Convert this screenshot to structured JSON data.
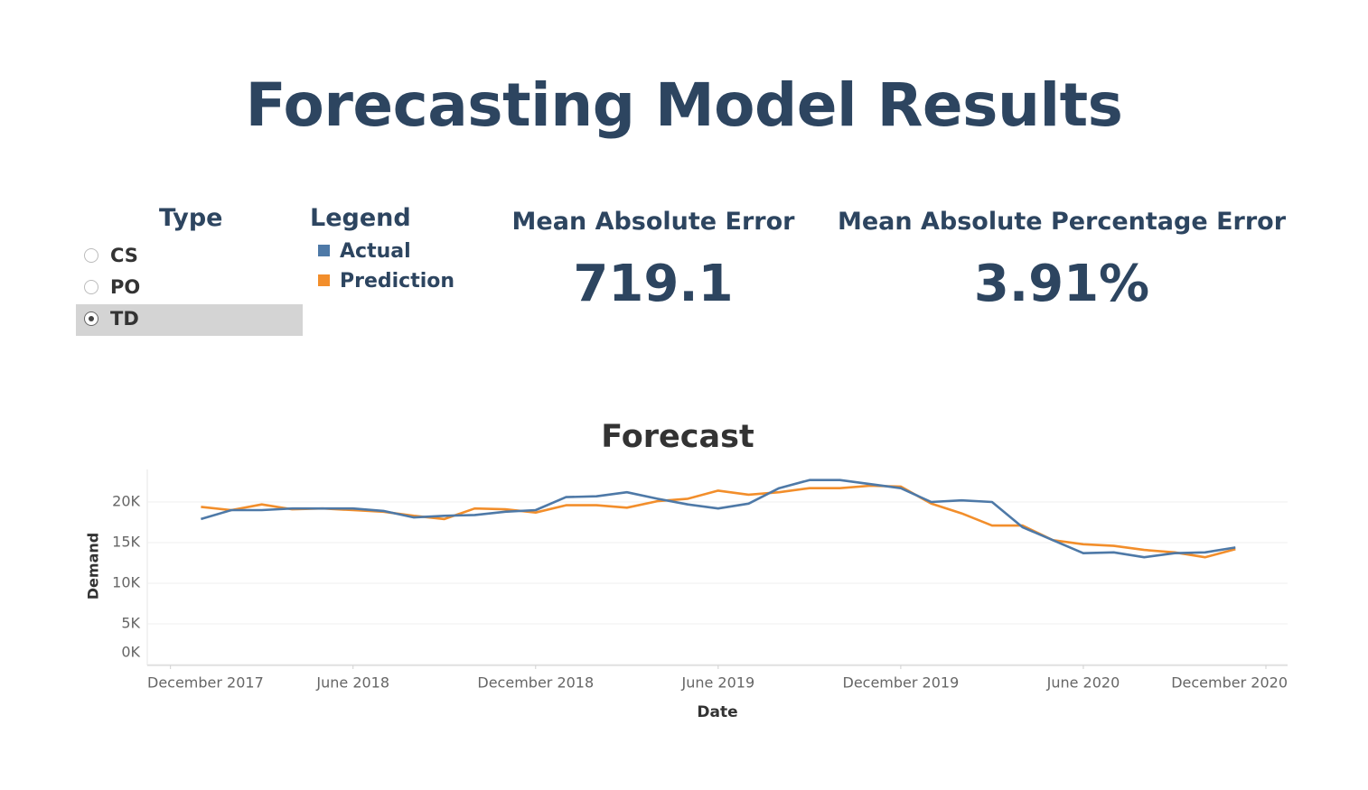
{
  "header": {
    "title": "Forecasting Model Results"
  },
  "filter": {
    "title": "Type",
    "options": [
      "CS",
      "PO",
      "TD"
    ],
    "selected": "TD"
  },
  "legend": {
    "title": "Legend"
  },
  "kpis": [
    {
      "label": "Mean Absolute Error",
      "value": "719.1"
    },
    {
      "label": "Mean Absolute Percentage Error",
      "value": "3.91%"
    }
  ],
  "chart_data": {
    "type": "line",
    "title": "Forecast",
    "x_label": "Date",
    "y_label": "Demand",
    "x": [
      "2018-01",
      "2018-02",
      "2018-03",
      "2018-04",
      "2018-05",
      "2018-06",
      "2018-07",
      "2018-08",
      "2018-09",
      "2018-10",
      "2018-11",
      "2018-12",
      "2019-01",
      "2019-02",
      "2019-03",
      "2019-04",
      "2019-05",
      "2019-06",
      "2019-07",
      "2019-08",
      "2019-09",
      "2019-10",
      "2019-11",
      "2019-12",
      "2020-01",
      "2020-02",
      "2020-03",
      "2020-04",
      "2020-05",
      "2020-06",
      "2020-07",
      "2020-08",
      "2020-09",
      "2020-10",
      "2020-11"
    ],
    "series": [
      {
        "name": "Actual",
        "color": "#4e79a7",
        "values": [
          17900,
          19000,
          19000,
          19200,
          19200,
          19200,
          18900,
          18100,
          18300,
          18400,
          18800,
          19000,
          20600,
          20700,
          21200,
          20400,
          19700,
          19200,
          19800,
          21700,
          22700,
          22700,
          22200,
          21700,
          20000,
          20200,
          20000,
          16900,
          15300,
          13700,
          13800,
          13200,
          13700,
          13800,
          14400
        ]
      },
      {
        "name": "Prediction",
        "color": "#f28e2b",
        "values": [
          19400,
          19000,
          19700,
          19100,
          19200,
          19000,
          18800,
          18300,
          17900,
          19200,
          19100,
          18700,
          19600,
          19600,
          19300,
          20100,
          20400,
          21400,
          20900,
          21200,
          21700,
          21700,
          22000,
          21900,
          19800,
          18600,
          17100,
          17100,
          15300,
          14800,
          14600,
          14100,
          13800,
          13200,
          14200
        ]
      }
    ],
    "xlim": [
      "2017-11",
      "2020-12"
    ],
    "xticks": [
      {
        "value": "2017-12",
        "label": "December 2017"
      },
      {
        "value": "2018-06",
        "label": "June 2018"
      },
      {
        "value": "2018-12",
        "label": "December 2018"
      },
      {
        "value": "2019-06",
        "label": "June 2019"
      },
      {
        "value": "2019-12",
        "label": "December 2019"
      },
      {
        "value": "2020-06",
        "label": "June 2020"
      },
      {
        "value": "2020-12",
        "label": "December 2020"
      }
    ],
    "ylim": [
      0,
      24000
    ],
    "yticks": [
      {
        "value": 0,
        "label": "0K"
      },
      {
        "value": 5000,
        "label": "5K"
      },
      {
        "value": 10000,
        "label": "10K"
      },
      {
        "value": 15000,
        "label": "15K"
      },
      {
        "value": 20000,
        "label": "20K"
      }
    ],
    "grid": true
  }
}
